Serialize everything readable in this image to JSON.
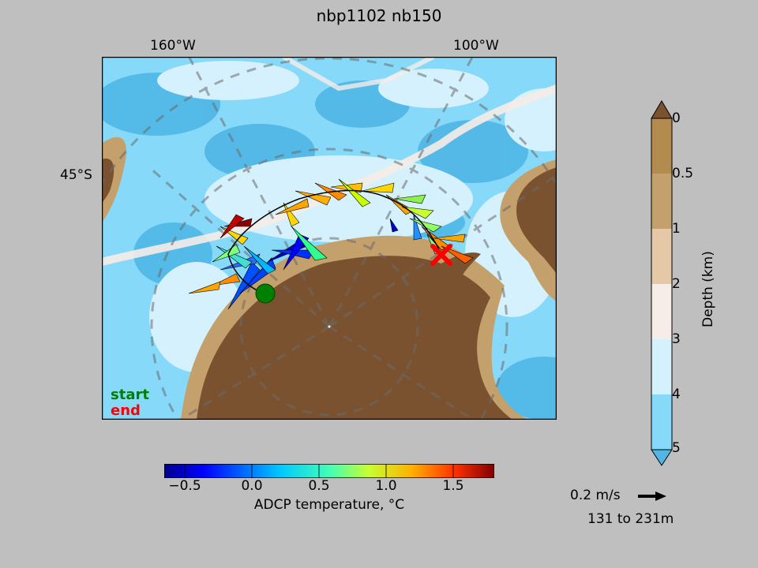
{
  "title": "nbp1102 nb150",
  "map": {
    "lon_labels": [
      "160°W",
      "100°W"
    ],
    "lat_labels": [
      "45°S"
    ],
    "legend": {
      "start": "start",
      "end": "end"
    },
    "track_color": "#000000",
    "start_marker_color": "#008000",
    "end_marker_color": "#ff0000"
  },
  "depth_colorbar": {
    "label": "Depth (km)",
    "ticks": [
      "0",
      "0.5",
      "1",
      "2",
      "3",
      "4",
      "5"
    ],
    "colors": [
      "#b38b4e",
      "#c4a06c",
      "#e5c9a6",
      "#f6ece8",
      "#d4f1fd",
      "#86d9f8",
      "#4fb6e6"
    ],
    "land_color": "#7a5230"
  },
  "temp_colorbar": {
    "label": "ADCP temperature, °C",
    "ticks": [
      "−0.5",
      "0.0",
      "0.5",
      "1.0",
      "1.5"
    ],
    "range": [
      -0.65,
      1.8
    ]
  },
  "scale": {
    "text": "0.2 m/s",
    "depth_range": "131 to 231m"
  }
}
